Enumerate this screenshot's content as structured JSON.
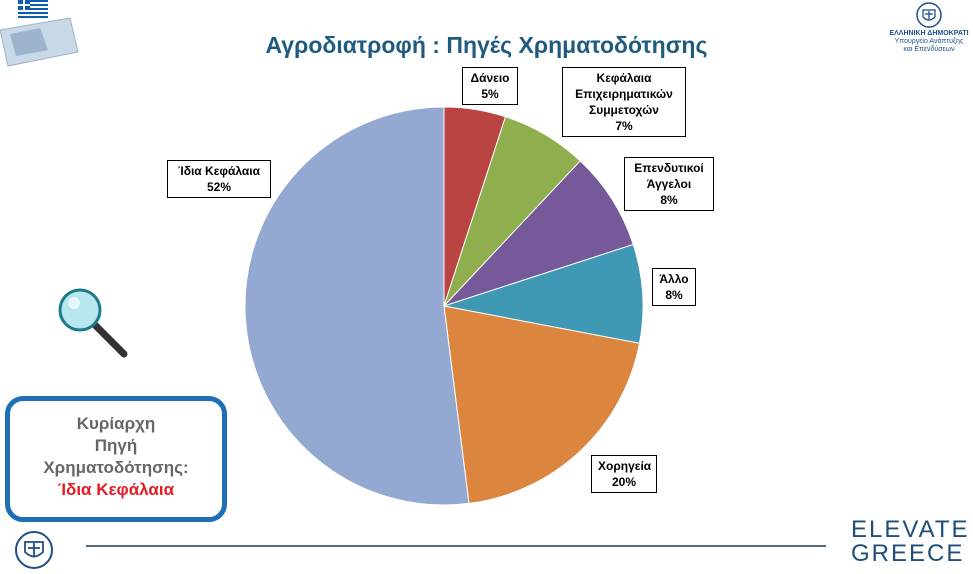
{
  "title": "Αγροδιατροφή : Πηγές Χρηματοδότησης",
  "chart_data": {
    "type": "pie",
    "title": "Αγροδιατροφή : Πηγές Χρηματοδότησης",
    "slices": [
      {
        "label_lines": [
          "Δάνειο"
        ],
        "value": 5,
        "value_label": "5%",
        "color": "#b94441"
      },
      {
        "label_lines": [
          "Κεφάλαια",
          "Επιχειρηματικών",
          "Συμμετοχών"
        ],
        "value": 7,
        "value_label": "7%",
        "color": "#8fae4e"
      },
      {
        "label_lines": [
          "Επενδυτικοί",
          "Άγγελοι"
        ],
        "value": 8,
        "value_label": "8%",
        "color": "#755998"
      },
      {
        "label_lines": [
          "Άλλο"
        ],
        "value": 8,
        "value_label": "8%",
        "color": "#3f98b4"
      },
      {
        "label_lines": [
          "Χορηγεία"
        ],
        "value": 20,
        "value_label": "20%",
        "color": "#dc853e"
      },
      {
        "label_lines": [
          "Ίδια Κεφάλαια"
        ],
        "value": 52,
        "value_label": "52%",
        "color": "#94a9d2"
      }
    ]
  },
  "callout": {
    "lines": [
      "Κυρίαρχη",
      "Πηγή",
      "Χρηματοδότησης:"
    ],
    "highlight": "Ίδια Κεφάλαια",
    "highlight_color": "#e31b23"
  },
  "gov_logo": {
    "line1": "ΕΛΛΗΝΙΚΗ ΔΗΜΟΚΡΑΤΙ",
    "line2": "Υπουργείο Ανάπτυξης",
    "line3": "και Επενδύσεων"
  },
  "elevate_logo": {
    "text1": "ELEVATE",
    "text2": "GREECE"
  },
  "icons": [
    "map-flag-icon",
    "gov-emblem-icon",
    "magnifier-icon",
    "emblem-bottom-icon"
  ]
}
